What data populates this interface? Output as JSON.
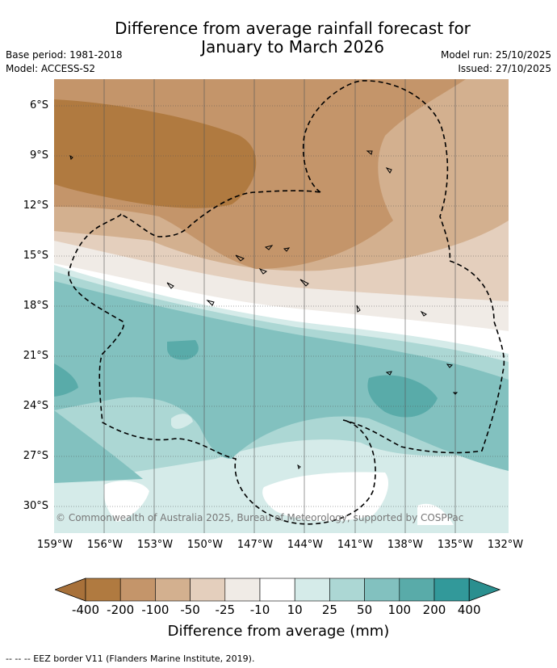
{
  "title_line1": "Difference from average rainfall forecast for",
  "title_line2": "January to March 2026",
  "base_period": "Base period: 1981-2018",
  "model": "Model: ACCESS-S2",
  "model_run": "Model run: 25/10/2025",
  "issued": "Issued: 27/10/2025",
  "copyright": "© Commonwealth of Australia 2025, Bureau of Meteorology, supported by COSPPac",
  "lat_labels": [
    "6°S",
    "9°S",
    "12°S",
    "15°S",
    "18°S",
    "21°S",
    "24°S",
    "27°S",
    "30°S"
  ],
  "lon_labels": [
    "159°W",
    "156°W",
    "153°W",
    "150°W",
    "147°W",
    "144°W",
    "141°W",
    "138°W",
    "135°W",
    "132°W"
  ],
  "colorbar": {
    "title": "Difference from average (mm)",
    "tick_labels": [
      "-400",
      "-200",
      "-100",
      "-50",
      "-25",
      "-10",
      "10",
      "25",
      "50",
      "100",
      "200",
      "400"
    ],
    "colors": [
      "#a8713a",
      "#b07a40",
      "#c4956a",
      "#d3b08f",
      "#e4cfbd",
      "#f0ebe6",
      "#ffffff",
      "#d5ebe9",
      "#acd7d4",
      "#82c1bf",
      "#59aba9",
      "#32999a",
      "#2a8f8f"
    ]
  },
  "footer": "--  --  -- EEZ border V11 (Flanders Marine Institute, 2019).",
  "icons": {
    "eez": "dashed-border",
    "islands": "island-outline"
  }
}
